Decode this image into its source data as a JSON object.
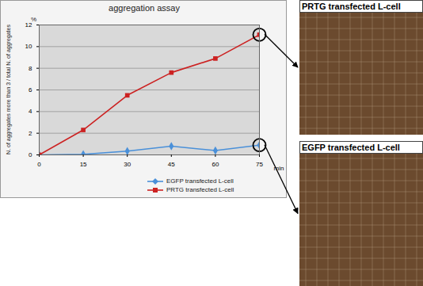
{
  "chart_data": {
    "type": "line",
    "title": "aggregation assay",
    "xlabel": "min",
    "ylabel": "N. of aggregates more than 3 / total N. of aggregates",
    "yunit": "%",
    "x": [
      0,
      15,
      30,
      45,
      60,
      75
    ],
    "series": [
      {
        "name": "EGFP transfected L-cell",
        "color": "#4a90d9",
        "marker": "diamond",
        "values": [
          0,
          0.05,
          0.35,
          0.8,
          0.4,
          0.9
        ]
      },
      {
        "name": "PRTG transfected L-cell",
        "color": "#cc2222",
        "marker": "square",
        "values": [
          0,
          2.3,
          5.5,
          7.6,
          8.9,
          11.1
        ]
      }
    ],
    "xlim": [
      0,
      75
    ],
    "xticks": [
      0,
      15,
      30,
      45,
      60,
      75
    ],
    "ylim": [
      0,
      12
    ],
    "yticks": [
      0,
      2,
      4,
      6,
      8,
      10,
      12
    ],
    "grid": true,
    "legend": "bottom"
  },
  "images": [
    {
      "label": "PRTG transfected L-cell"
    },
    {
      "label": "EGFP transfected L-cell"
    }
  ]
}
